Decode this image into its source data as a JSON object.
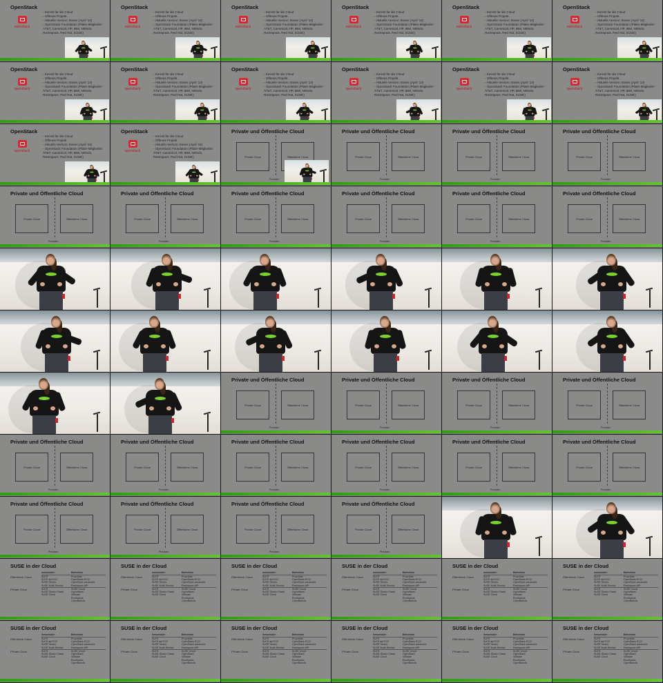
{
  "openstack_slide": {
    "title": "OpenStack",
    "logo_text": "openstack",
    "bullets": [
      "Kernel für die Cloud",
      "Offenes Projekt",
      "Aktuelle Version: Essex (April '12)",
      "OpenStack Foundation (Platin-Mitglieder: AT&T, Canonical, HP, IBM, Nebula, Rackspace, Red Hat, SUSE)"
    ]
  },
  "cloud_slide": {
    "title": "Private und Öffentliche Cloud",
    "private_label": "Private Cloud",
    "public_label": "Öffentliche Cloud",
    "provider_label": "Provider"
  },
  "suse_slide": {
    "title": "SUSE in der Cloud",
    "col_headers": [
      "Anwender",
      "Betreiber"
    ],
    "rows": [
      {
        "label": "Öffentliche Cloud",
        "anwender": [
          "SLES",
          "SLES auf EC2",
          "SUSE Studio",
          "SUSE Multi-Service"
        ],
        "betreiber": [
          "Proprietär",
          "OpenStack EC2i",
          "OpenStack advanced",
          "Rackspace API"
        ]
      },
      {
        "label": "Private Cloud",
        "anwender": [
          "SLES",
          "SUSE Studio Onsite",
          "SUSE Cloud"
        ],
        "betreiber": [
          "SUSE Cloud",
          "OpenStack",
          "VMware",
          "Eucalyptus",
          "OpenNebula"
        ]
      }
    ]
  },
  "colors": {
    "slide_bg": "#8a8a89",
    "accent_green": "#4caf1f",
    "openstack_red": "#d9272f"
  },
  "grid": {
    "columns": 6,
    "rows": 11,
    "tiles": [
      {
        "type": "openstack",
        "pose": 0
      },
      {
        "type": "openstack",
        "pose": 1
      },
      {
        "type": "openstack",
        "pose": 2
      },
      {
        "type": "openstack",
        "pose": 3
      },
      {
        "type": "openstack",
        "pose": 4
      },
      {
        "type": "openstack",
        "pose": 5
      },
      {
        "type": "openstack",
        "pose": 1
      },
      {
        "type": "openstack",
        "pose": 2
      },
      {
        "type": "openstack",
        "pose": 0
      },
      {
        "type": "openstack",
        "pose": 3
      },
      {
        "type": "openstack",
        "pose": 4
      },
      {
        "type": "openstack",
        "pose": 5
      },
      {
        "type": "openstack",
        "pose": 2
      },
      {
        "type": "openstack",
        "pose": 0
      },
      {
        "type": "cloud_pip",
        "pose": 1
      },
      {
        "type": "cloud"
      },
      {
        "type": "cloud"
      },
      {
        "type": "cloud"
      },
      {
        "type": "cloud"
      },
      {
        "type": "cloud"
      },
      {
        "type": "cloud"
      },
      {
        "type": "cloud"
      },
      {
        "type": "cloud"
      },
      {
        "type": "cloud"
      },
      {
        "type": "speaker",
        "pose": 0
      },
      {
        "type": "speaker",
        "pose": 1
      },
      {
        "type": "speaker",
        "pose": 2
      },
      {
        "type": "speaker",
        "pose": 3
      },
      {
        "type": "speaker",
        "pose": 4
      },
      {
        "type": "speaker",
        "pose": 5
      },
      {
        "type": "speaker",
        "pose": 1
      },
      {
        "type": "speaker",
        "pose": 2
      },
      {
        "type": "speaker",
        "pose": 3
      },
      {
        "type": "speaker",
        "pose": 4
      },
      {
        "type": "speaker",
        "pose": 0
      },
      {
        "type": "speaker",
        "pose": 5
      },
      {
        "type": "speaker",
        "pose": 2
      },
      {
        "type": "speaker",
        "pose": 3
      },
      {
        "type": "cloud"
      },
      {
        "type": "cloud"
      },
      {
        "type": "cloud"
      },
      {
        "type": "cloud"
      },
      {
        "type": "cloud"
      },
      {
        "type": "cloud"
      },
      {
        "type": "cloud"
      },
      {
        "type": "cloud"
      },
      {
        "type": "cloud"
      },
      {
        "type": "cloud"
      },
      {
        "type": "cloud"
      },
      {
        "type": "cloud"
      },
      {
        "type": "cloud"
      },
      {
        "type": "cloud"
      },
      {
        "type": "speaker",
        "pose": 4
      },
      {
        "type": "speaker",
        "pose": 5
      },
      {
        "type": "suse"
      },
      {
        "type": "suse"
      },
      {
        "type": "suse"
      },
      {
        "type": "suse"
      },
      {
        "type": "suse"
      },
      {
        "type": "suse"
      },
      {
        "type": "suse"
      },
      {
        "type": "suse"
      },
      {
        "type": "suse"
      },
      {
        "type": "suse"
      },
      {
        "type": "suse"
      },
      {
        "type": "suse"
      }
    ]
  }
}
